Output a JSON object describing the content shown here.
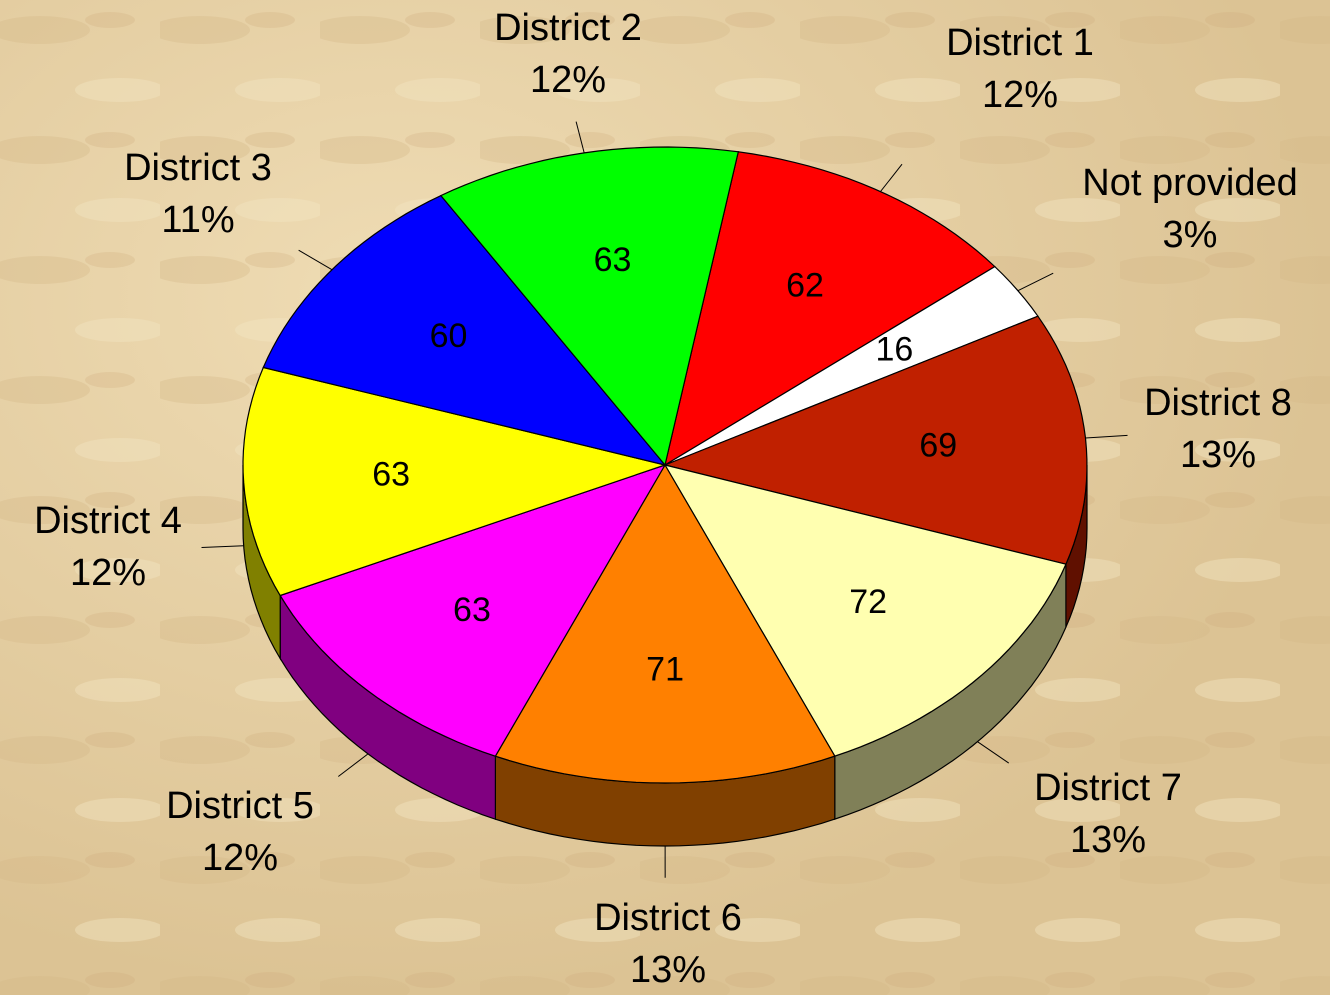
{
  "chart_data": {
    "type": "pie",
    "categories": [
      "District 1",
      "Not provided",
      "District 8",
      "District 7",
      "District 6",
      "District 5",
      "District 4",
      "District 3",
      "District 2"
    ],
    "values": [
      62,
      16,
      69,
      72,
      71,
      63,
      63,
      60,
      63
    ],
    "percent_labels": [
      "12%",
      "3%",
      "13%",
      "13%",
      "13%",
      "12%",
      "12%",
      "11%",
      "12%"
    ],
    "colors": [
      "#ff0000",
      "#ffffff",
      "#c02000",
      "#ffffb0",
      "#ff8000",
      "#ff00ff",
      "#ffff00",
      "#0000ff",
      "#00ff00"
    ],
    "start_angle": 10
  }
}
